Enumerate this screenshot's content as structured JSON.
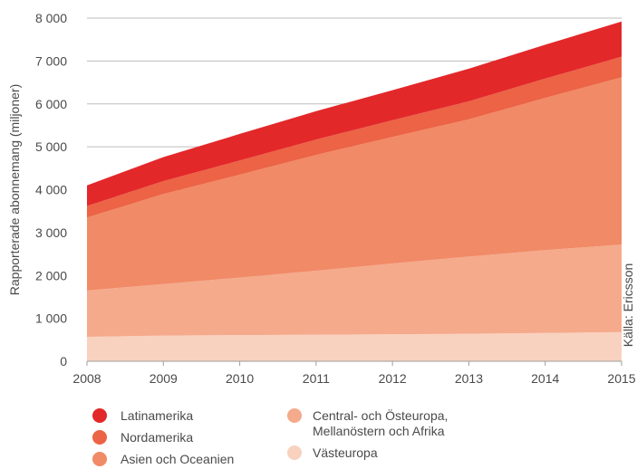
{
  "chart_data": {
    "type": "area",
    "stacked": true,
    "x": [
      2008,
      2009,
      2010,
      2011,
      2012,
      2013,
      2014,
      2015
    ],
    "x_tick_labels": [
      "2008",
      "2009",
      "2010",
      "2011",
      "2012",
      "2013",
      "2014",
      "2015"
    ],
    "ylim": [
      0,
      8000
    ],
    "y_ticks": [
      0,
      1000,
      2000,
      3000,
      4000,
      5000,
      6000,
      7000,
      8000
    ],
    "y_tick_labels": [
      "0",
      "1 000",
      "2 000",
      "3 000",
      "4 000",
      "5 000",
      "6 000",
      "7 000",
      "8 000"
    ],
    "ylabel": "Rapporterade abonnemang (miljoner)",
    "source": "Källa: Ericsson",
    "grid": "horizontal",
    "legend_position": "bottom",
    "series": [
      {
        "name": "Västeuropa",
        "color": "#f9d1bf",
        "values": [
          570,
          600,
          610,
          620,
          630,
          640,
          660,
          680
        ]
      },
      {
        "name": "Central- och Östeuropa, Mellanöstern och Afrika",
        "color": "#f5aa8c",
        "values": [
          1080,
          1200,
          1340,
          1490,
          1650,
          1800,
          1930,
          2040
        ]
      },
      {
        "name": "Asien och Oceanien",
        "color": "#f18a66",
        "values": [
          1700,
          2100,
          2400,
          2700,
          2950,
          3200,
          3550,
          3900
        ]
      },
      {
        "name": "Nordamerika",
        "color": "#ec6346",
        "values": [
          270,
          300,
          330,
          360,
          390,
          420,
          450,
          480
        ]
      },
      {
        "name": "Latinamerika",
        "color": "#e3282a",
        "values": [
          480,
          560,
          620,
          660,
          700,
          760,
          790,
          820
        ]
      }
    ],
    "legend_columns": [
      [
        {
          "series": "Latinamerika",
          "lines": [
            "Latinamerika"
          ]
        },
        {
          "series": "Nordamerika",
          "lines": [
            "Nordamerika"
          ]
        },
        {
          "series": "Asien och Oceanien",
          "lines": [
            "Asien och Oceanien"
          ]
        }
      ],
      [
        {
          "series": "Central- och Östeuropa, Mellanöstern och Afrika",
          "lines": [
            "Central- och Östeuropa,",
            "Mellanöstern och Afrika"
          ]
        },
        {
          "series": "Västeuropa",
          "lines": [
            "Västeuropa"
          ]
        }
      ]
    ]
  }
}
